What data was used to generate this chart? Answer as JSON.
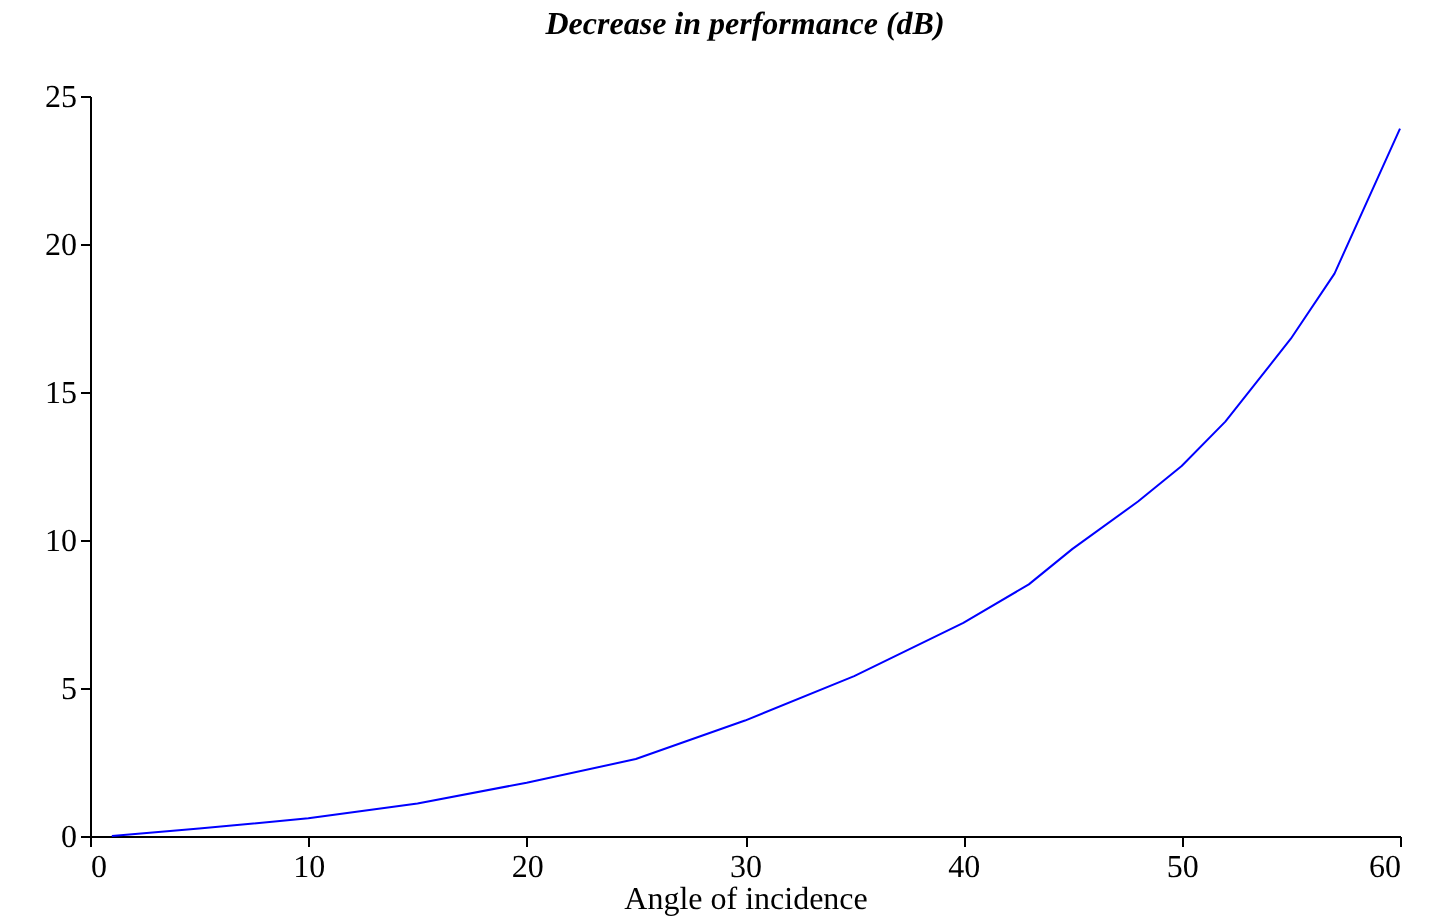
{
  "chart_data": {
    "type": "line",
    "title": "Decrease in performance (dB)",
    "xlabel": "Angle of incidence",
    "x": [
      1,
      5,
      10,
      15,
      20,
      25,
      30,
      35,
      40,
      43,
      45,
      48,
      50,
      52,
      55,
      57,
      60
    ],
    "series": [
      {
        "color": "#0000ff",
        "values": [
          0,
          0.25,
          0.6,
          1.1,
          1.8,
          2.6,
          3.9,
          5.4,
          7.2,
          8.5,
          9.7,
          11.3,
          12.5,
          14.0,
          16.8,
          19.0,
          23.9
        ]
      }
    ],
    "xlim": [
      0,
      60
    ],
    "xticks": [
      0,
      10,
      20,
      30,
      40,
      50,
      60
    ],
    "ylim": [
      0,
      25
    ],
    "yticks": [
      0,
      5,
      10,
      15,
      20,
      25
    ],
    "grid": false,
    "marker": "none",
    "line_style": "solid"
  }
}
